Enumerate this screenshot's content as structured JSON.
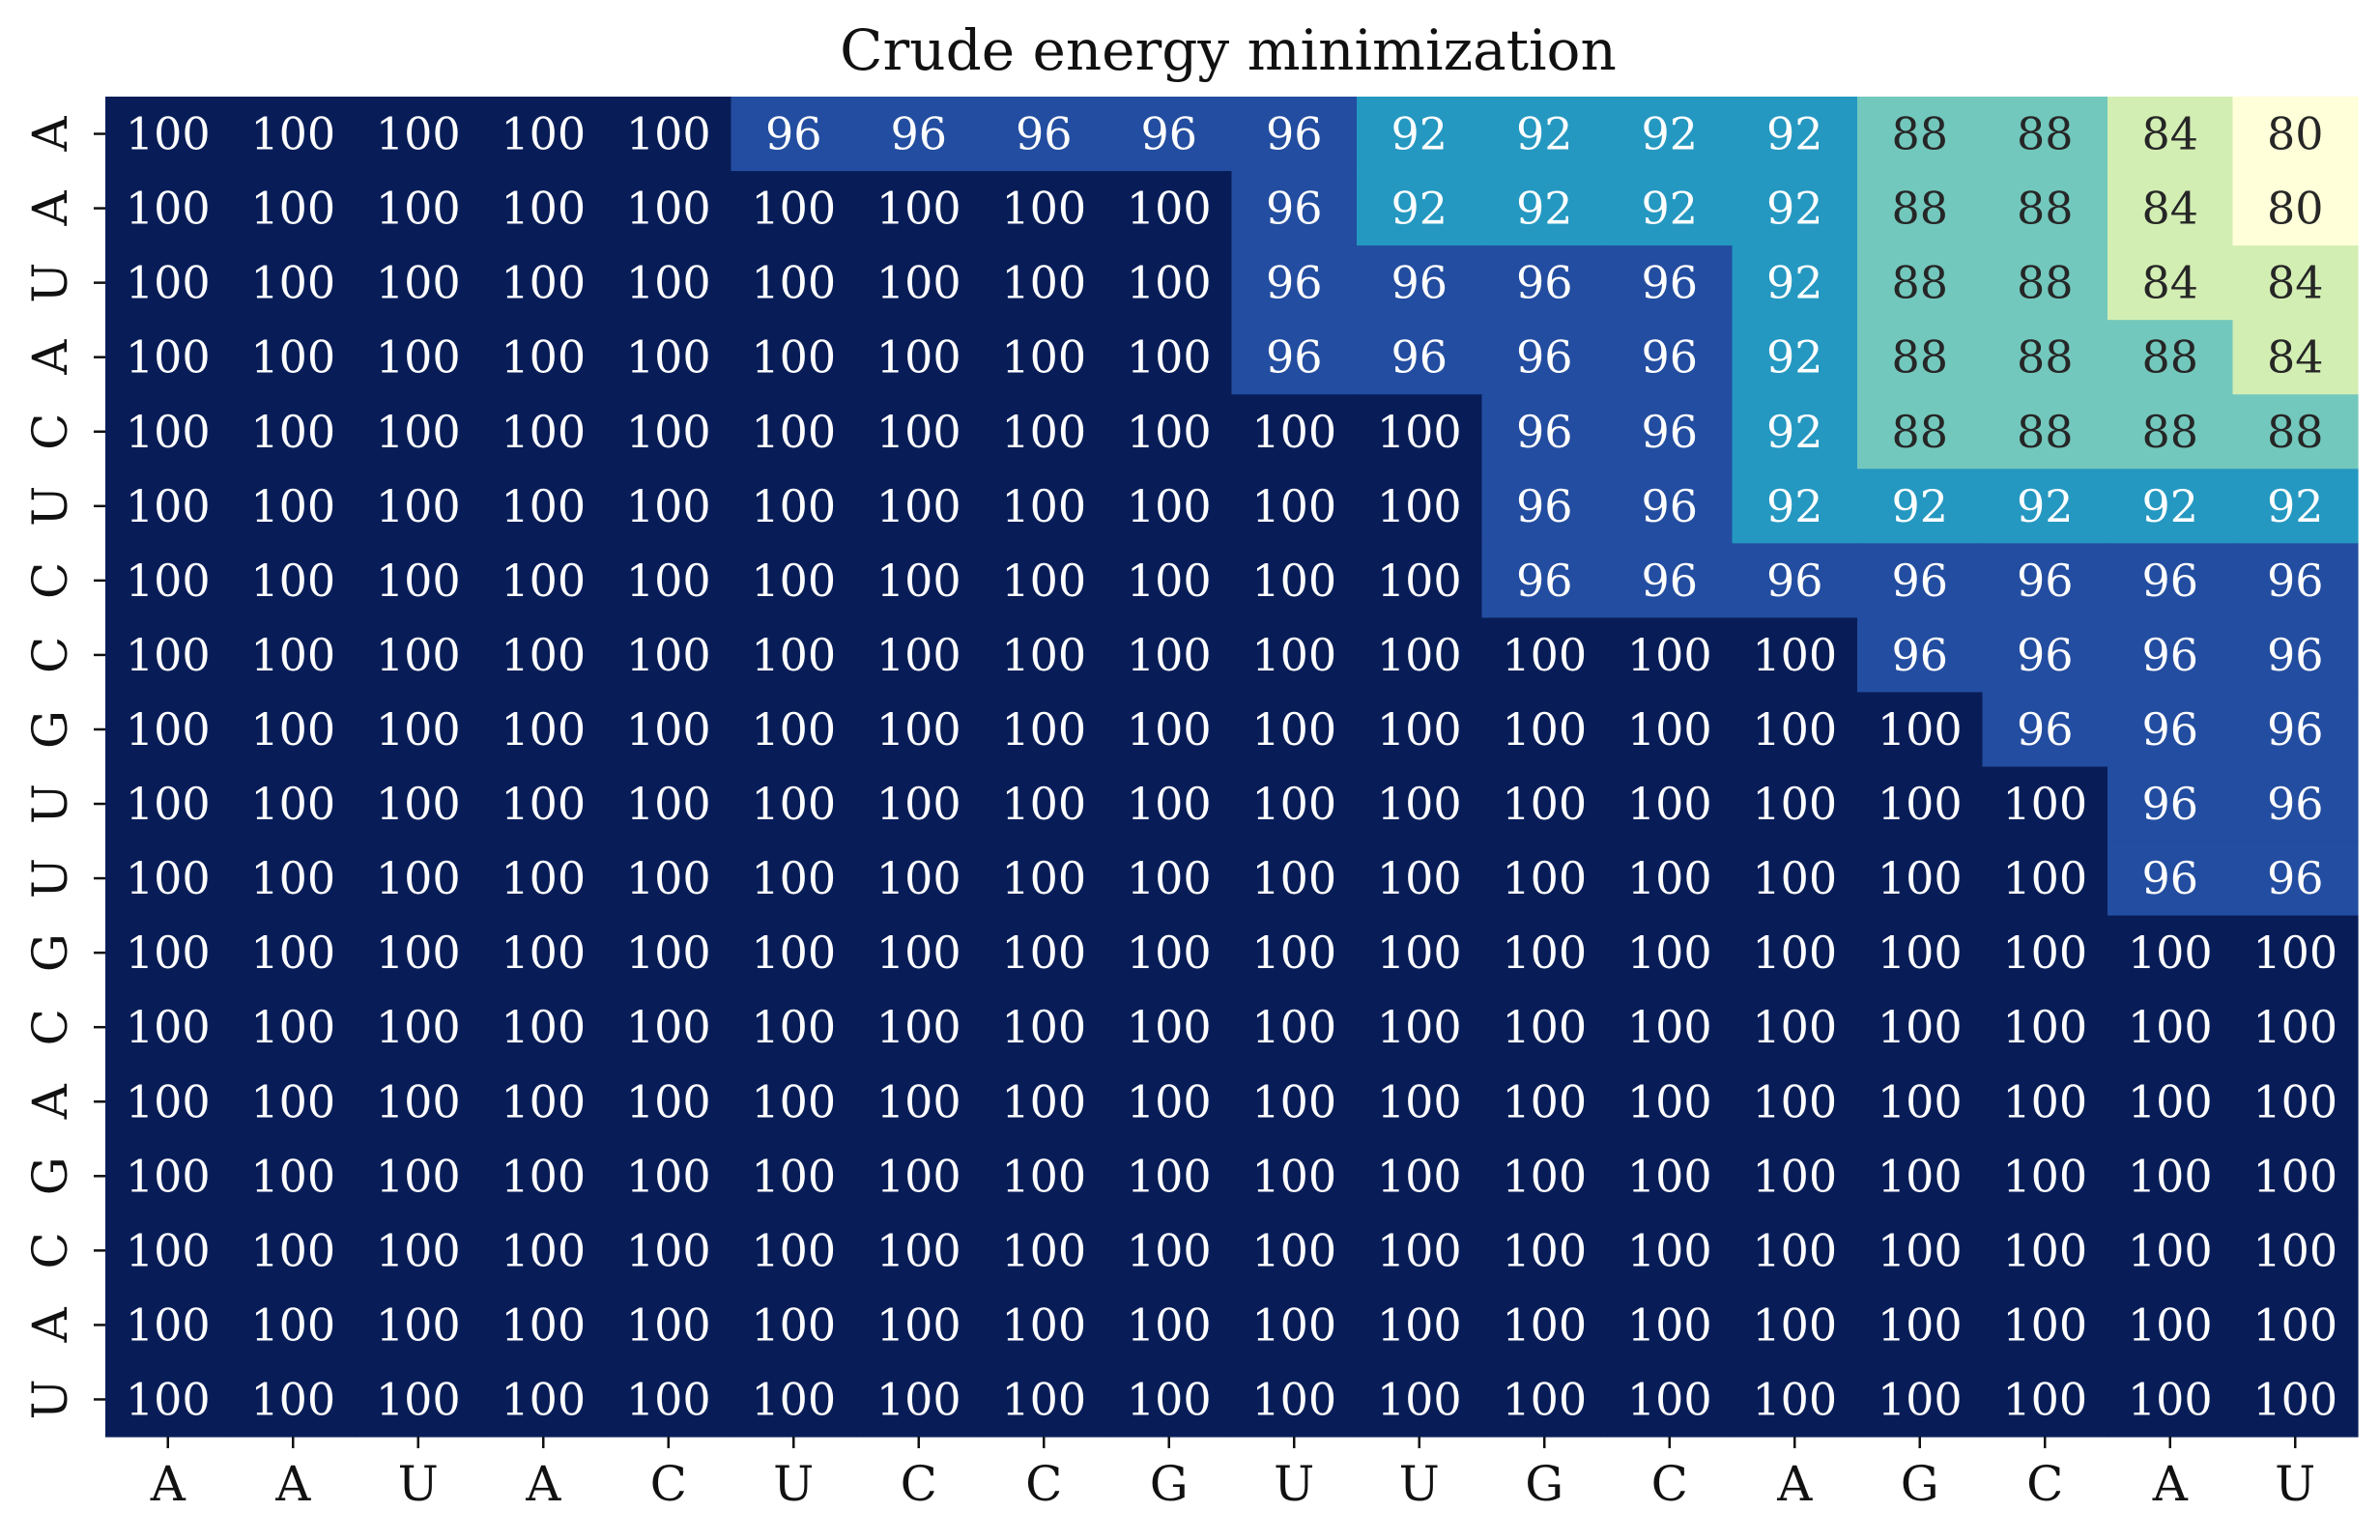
{
  "chart_data": {
    "type": "heatmap",
    "title": "Crude energy minimization",
    "xlabel": "",
    "ylabel": "",
    "x_categories": [
      "A",
      "A",
      "U",
      "A",
      "C",
      "U",
      "C",
      "C",
      "G",
      "U",
      "U",
      "G",
      "C",
      "A",
      "G",
      "C",
      "A",
      "U"
    ],
    "y_categories": [
      "A",
      "A",
      "U",
      "A",
      "C",
      "U",
      "C",
      "C",
      "G",
      "U",
      "U",
      "G",
      "C",
      "A",
      "G",
      "C",
      "A",
      "U"
    ],
    "colormap": "YlGnBu",
    "value_range": [
      80,
      100
    ],
    "colorbar": false,
    "values": [
      [
        100,
        100,
        100,
        100,
        100,
        96,
        96,
        96,
        96,
        96,
        92,
        92,
        92,
        92,
        88,
        88,
        84,
        80
      ],
      [
        100,
        100,
        100,
        100,
        100,
        100,
        100,
        100,
        100,
        96,
        92,
        92,
        92,
        92,
        88,
        88,
        84,
        80
      ],
      [
        100,
        100,
        100,
        100,
        100,
        100,
        100,
        100,
        100,
        96,
        96,
        96,
        96,
        92,
        88,
        88,
        84,
        84
      ],
      [
        100,
        100,
        100,
        100,
        100,
        100,
        100,
        100,
        100,
        96,
        96,
        96,
        96,
        92,
        88,
        88,
        88,
        84
      ],
      [
        100,
        100,
        100,
        100,
        100,
        100,
        100,
        100,
        100,
        100,
        100,
        96,
        96,
        92,
        88,
        88,
        88,
        88
      ],
      [
        100,
        100,
        100,
        100,
        100,
        100,
        100,
        100,
        100,
        100,
        100,
        96,
        96,
        92,
        92,
        92,
        92,
        92
      ],
      [
        100,
        100,
        100,
        100,
        100,
        100,
        100,
        100,
        100,
        100,
        100,
        96,
        96,
        96,
        96,
        96,
        96,
        96
      ],
      [
        100,
        100,
        100,
        100,
        100,
        100,
        100,
        100,
        100,
        100,
        100,
        100,
        100,
        100,
        96,
        96,
        96,
        96
      ],
      [
        100,
        100,
        100,
        100,
        100,
        100,
        100,
        100,
        100,
        100,
        100,
        100,
        100,
        100,
        100,
        96,
        96,
        96
      ],
      [
        100,
        100,
        100,
        100,
        100,
        100,
        100,
        100,
        100,
        100,
        100,
        100,
        100,
        100,
        100,
        100,
        96,
        96
      ],
      [
        100,
        100,
        100,
        100,
        100,
        100,
        100,
        100,
        100,
        100,
        100,
        100,
        100,
        100,
        100,
        100,
        96,
        96
      ],
      [
        100,
        100,
        100,
        100,
        100,
        100,
        100,
        100,
        100,
        100,
        100,
        100,
        100,
        100,
        100,
        100,
        100,
        100
      ],
      [
        100,
        100,
        100,
        100,
        100,
        100,
        100,
        100,
        100,
        100,
        100,
        100,
        100,
        100,
        100,
        100,
        100,
        100
      ],
      [
        100,
        100,
        100,
        100,
        100,
        100,
        100,
        100,
        100,
        100,
        100,
        100,
        100,
        100,
        100,
        100,
        100,
        100
      ],
      [
        100,
        100,
        100,
        100,
        100,
        100,
        100,
        100,
        100,
        100,
        100,
        100,
        100,
        100,
        100,
        100,
        100,
        100
      ],
      [
        100,
        100,
        100,
        100,
        100,
        100,
        100,
        100,
        100,
        100,
        100,
        100,
        100,
        100,
        100,
        100,
        100,
        100
      ],
      [
        100,
        100,
        100,
        100,
        100,
        100,
        100,
        100,
        100,
        100,
        100,
        100,
        100,
        100,
        100,
        100,
        100,
        100
      ],
      [
        100,
        100,
        100,
        100,
        100,
        100,
        100,
        100,
        100,
        100,
        100,
        100,
        100,
        100,
        100,
        100,
        100,
        100
      ]
    ],
    "value_colors": {
      "80": "#ffffd9",
      "84": "#d3eeb3",
      "88": "#73c8bd",
      "92": "#2498c1",
      "96": "#234da0",
      "100": "#081d58"
    },
    "value_text_colors": {
      "80": "#262626",
      "84": "#262626",
      "88": "#262626",
      "92": "#ffffff",
      "96": "#ffffff",
      "100": "#ffffff"
    }
  }
}
